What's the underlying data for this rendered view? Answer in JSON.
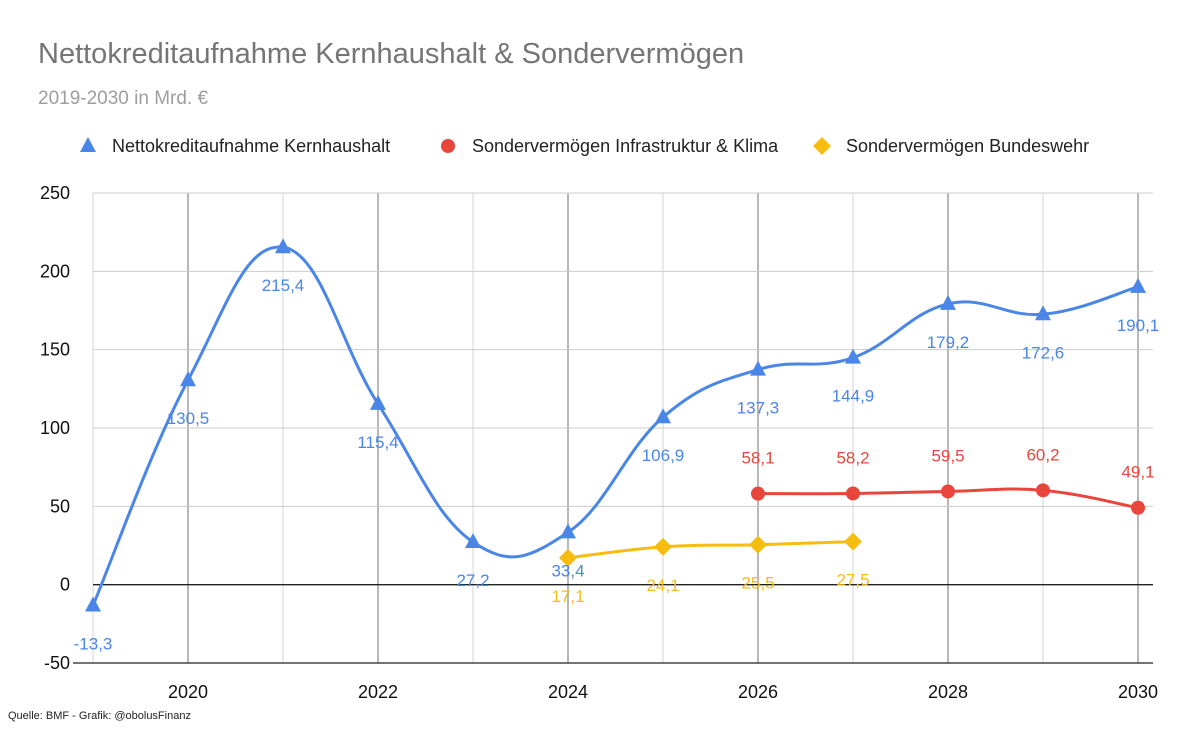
{
  "chart_data": {
    "type": "line",
    "title": "Nettokreditaufnahme Kernhaushalt & Sondervermögen",
    "subtitle": "2019-2030 in Mrd. €",
    "source": "Quelle: BMF - Grafik: @obolusFinanz",
    "xlim": [
      2019,
      2030
    ],
    "ylim": [
      -50,
      250
    ],
    "x_ticks": [
      "2020",
      "2022",
      "2024",
      "2026",
      "2028",
      "2030"
    ],
    "x_tick_values": [
      2020,
      2022,
      2024,
      2026,
      2028,
      2030
    ],
    "y_ticks": [
      "-50",
      "0",
      "50",
      "100",
      "150",
      "200",
      "250"
    ],
    "y_tick_values": [
      -50,
      0,
      50,
      100,
      150,
      200,
      250
    ],
    "grid": true,
    "legend_position": "top",
    "series": [
      {
        "name": "Nettokreditaufnahme Kernhaushalt",
        "color": "#4a86e8",
        "marker": "triangle",
        "smooth": true,
        "x": [
          2019,
          2020,
          2021,
          2022,
          2023,
          2024,
          2025,
          2026,
          2027,
          2028,
          2029,
          2030
        ],
        "values": [
          -13.3,
          130.5,
          215.4,
          115.4,
          27.2,
          33.4,
          106.9,
          137.3,
          144.9,
          179.2,
          172.6,
          190.1
        ],
        "labels": [
          "-13,3",
          "130,5",
          "215,4",
          "115,4",
          "27,2",
          "33,4",
          "106,9",
          "137,3",
          "144,9",
          "179,2",
          "172,6",
          "190,1"
        ]
      },
      {
        "name": "Sondervermögen Infrastruktur & Klima",
        "color": "#e8453c",
        "marker": "circle",
        "smooth": true,
        "x": [
          2026,
          2027,
          2028,
          2029,
          2030
        ],
        "values": [
          58.1,
          58.2,
          59.5,
          60.2,
          49.1
        ],
        "labels": [
          "58,1",
          "58,2",
          "59,5",
          "60,2",
          "49,1"
        ]
      },
      {
        "name": "Sondervermögen Bundeswehr",
        "color": "#f6bd10",
        "marker": "diamond",
        "smooth": true,
        "x": [
          2024,
          2025,
          2026,
          2027
        ],
        "values": [
          17.1,
          24.1,
          25.5,
          27.5
        ],
        "labels": [
          "17,1",
          "24,1",
          "25,5",
          "27,5"
        ]
      }
    ]
  }
}
